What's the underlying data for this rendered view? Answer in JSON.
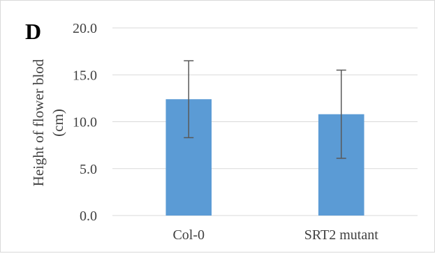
{
  "panel_label": "D",
  "chart_data": {
    "type": "bar",
    "categories": [
      "Col-0",
      "SRT2 mutant"
    ],
    "values": [
      12.4,
      10.8
    ],
    "error": [
      4.1,
      4.7
    ],
    "ylabel_lines": [
      "Height of flower blod",
      "(cm)"
    ],
    "ylim": [
      0,
      20
    ],
    "yticks": [
      0,
      5,
      10,
      15,
      20
    ],
    "ytick_labels": [
      "0.0",
      "5.0",
      "10.0",
      "15.0",
      "20.0"
    ],
    "grid": true,
    "bar_color": "#5b9bd5",
    "errorbar_color": "#595959",
    "grid_color": "#d9d9d9"
  }
}
